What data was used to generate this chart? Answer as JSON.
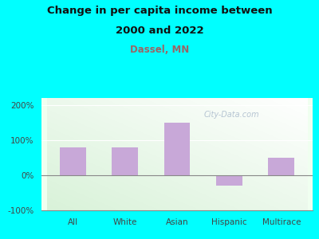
{
  "categories": [
    "All",
    "White",
    "Asian",
    "Hispanic",
    "Multirace"
  ],
  "values": [
    80,
    80,
    150,
    -30,
    50
  ],
  "bar_color": "#C8A8D8",
  "title_line1": "Change in per capita income between",
  "title_line2": "2000 and 2022",
  "subtitle": "Dassel, MN",
  "subtitle_color": "#996666",
  "title_color": "#111111",
  "bg_color": "#00FFFF",
  "ylim": [
    -100,
    220
  ],
  "yticks": [
    -100,
    0,
    100,
    200
  ],
  "ytick_labels": [
    "-100%",
    "0%",
    "100%",
    "200%"
  ],
  "watermark": "City-Data.com",
  "watermark_color": "#AABBCC",
  "title_fontsize": 9.5,
  "subtitle_fontsize": 8.5,
  "tick_fontsize": 7.5
}
